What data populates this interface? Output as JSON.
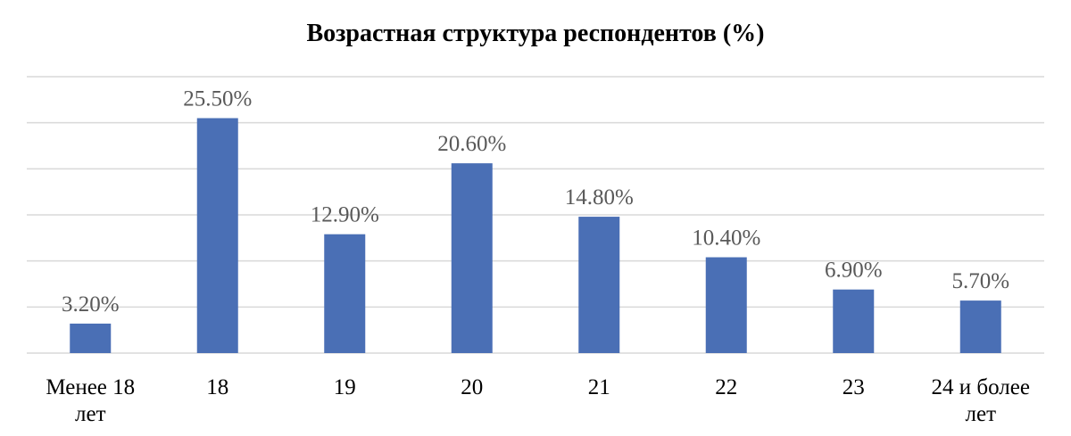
{
  "chart_data": {
    "type": "bar",
    "title": "Возрастная структура респондентов (%)",
    "categories": [
      "Менее 18 лет",
      "18",
      "19",
      "20",
      "21",
      "22",
      "23",
      "24 и более лет"
    ],
    "category_lines": [
      [
        "Менее 18",
        "лет"
      ],
      [
        "18"
      ],
      [
        "19"
      ],
      [
        "20"
      ],
      [
        "21"
      ],
      [
        "22"
      ],
      [
        "23"
      ],
      [
        "24 и более",
        "лет"
      ]
    ],
    "values": [
      3.2,
      25.5,
      12.9,
      20.6,
      14.8,
      10.4,
      6.9,
      5.7
    ],
    "data_labels": [
      "3.20%",
      "25.50%",
      "12.90%",
      "20.60%",
      "14.80%",
      "10.40%",
      "6.90%",
      "5.70%"
    ],
    "ylim": [
      0,
      30
    ],
    "grid_step": 5,
    "grid": true,
    "bar_color": "#4a6fb5"
  }
}
